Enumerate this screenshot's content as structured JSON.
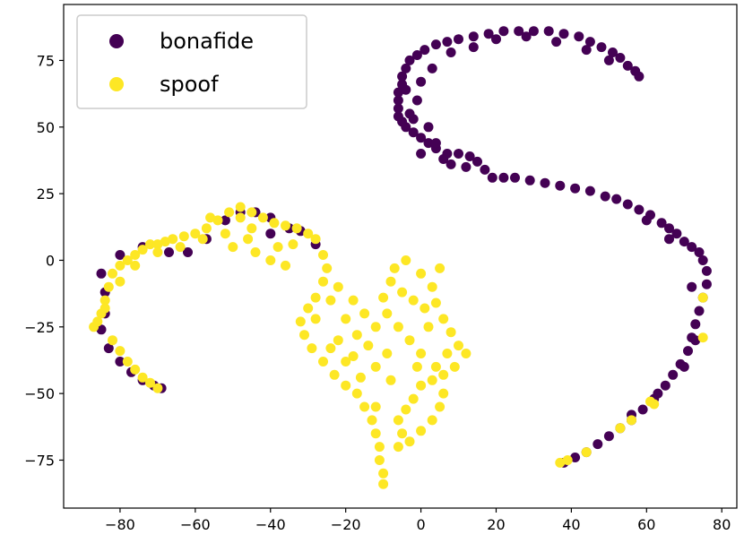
{
  "chart_data": {
    "type": "scatter",
    "title": "",
    "xlabel": "",
    "ylabel": "",
    "xlim": [
      -95,
      84
    ],
    "ylim": [
      -93,
      96
    ],
    "xticks": [
      -80,
      -60,
      -40,
      -20,
      0,
      20,
      40,
      60,
      80
    ],
    "yticks": [
      -75,
      -50,
      -25,
      0,
      25,
      50,
      75
    ],
    "xtick_labels": [
      "−80",
      "−60",
      "−40",
      "−20",
      "0",
      "20",
      "40",
      "60",
      "80"
    ],
    "ytick_labels": [
      "−75",
      "−50",
      "−25",
      "0",
      "25",
      "50",
      "75"
    ],
    "grid": false,
    "legend_position": "top-left",
    "series": [
      {
        "name": "bonafide",
        "color": "#440154",
        "points": [
          [
            -85,
            -5
          ],
          [
            -84,
            -12
          ],
          [
            -84,
            -20
          ],
          [
            -85,
            -26
          ],
          [
            -83,
            -33
          ],
          [
            -80,
            -38
          ],
          [
            -77,
            -42
          ],
          [
            -74,
            -45
          ],
          [
            -71,
            -47
          ],
          [
            -69,
            -48
          ],
          [
            -80,
            2
          ],
          [
            -74,
            5
          ],
          [
            -67,
            3
          ],
          [
            -62,
            3
          ],
          [
            -57,
            8
          ],
          [
            -52,
            15
          ],
          [
            -48,
            18
          ],
          [
            -44,
            18
          ],
          [
            -40,
            16
          ],
          [
            -35,
            12
          ],
          [
            -32,
            11
          ],
          [
            -28,
            6
          ],
          [
            -40,
            10
          ],
          [
            38,
            -76
          ],
          [
            41,
            -74
          ],
          [
            44,
            -72
          ],
          [
            47,
            -69
          ],
          [
            50,
            -66
          ],
          [
            53,
            -63
          ],
          [
            56,
            -60
          ],
          [
            59,
            -56
          ],
          [
            62,
            -52
          ],
          [
            65,
            -47
          ],
          [
            67,
            -43
          ],
          [
            69,
            -39
          ],
          [
            71,
            -34
          ],
          [
            72,
            -29
          ],
          [
            73,
            -24
          ],
          [
            74,
            -19
          ],
          [
            75,
            -14
          ],
          [
            76,
            -9
          ],
          [
            76,
            -4
          ],
          [
            75,
            0
          ],
          [
            74,
            3
          ],
          [
            72,
            5
          ],
          [
            70,
            7
          ],
          [
            68,
            10
          ],
          [
            66,
            12
          ],
          [
            64,
            14
          ],
          [
            61,
            17
          ],
          [
            58,
            19
          ],
          [
            55,
            21
          ],
          [
            52,
            23
          ],
          [
            49,
            24
          ],
          [
            45,
            26
          ],
          [
            41,
            27
          ],
          [
            37,
            28
          ],
          [
            33,
            29
          ],
          [
            29,
            30
          ],
          [
            25,
            31
          ],
          [
            22,
            31
          ],
          [
            19,
            31
          ],
          [
            17,
            34
          ],
          [
            15,
            37
          ],
          [
            13,
            39
          ],
          [
            10,
            40
          ],
          [
            7,
            40
          ],
          [
            4,
            42
          ],
          [
            2,
            44
          ],
          [
            0,
            46
          ],
          [
            -2,
            48
          ],
          [
            -4,
            50
          ],
          [
            -5,
            52
          ],
          [
            -6,
            54
          ],
          [
            -6,
            57
          ],
          [
            -6,
            60
          ],
          [
            -6,
            63
          ],
          [
            -5,
            66
          ],
          [
            -5,
            69
          ],
          [
            -4,
            72
          ],
          [
            -3,
            75
          ],
          [
            -1,
            77
          ],
          [
            1,
            79
          ],
          [
            4,
            81
          ],
          [
            7,
            82
          ],
          [
            10,
            83
          ],
          [
            14,
            84
          ],
          [
            18,
            85
          ],
          [
            22,
            86
          ],
          [
            26,
            86
          ],
          [
            30,
            86
          ],
          [
            34,
            86
          ],
          [
            38,
            85
          ],
          [
            42,
            84
          ],
          [
            45,
            82
          ],
          [
            48,
            80
          ],
          [
            51,
            78
          ],
          [
            53,
            76
          ],
          [
            55,
            73
          ],
          [
            57,
            71
          ],
          [
            58,
            69
          ],
          [
            0,
            40
          ],
          [
            4,
            44
          ],
          [
            2,
            50
          ],
          [
            -2,
            53
          ],
          [
            -1,
            60
          ],
          [
            0,
            67
          ],
          [
            3,
            72
          ],
          [
            8,
            78
          ],
          [
            14,
            80
          ],
          [
            20,
            83
          ],
          [
            28,
            84
          ],
          [
            36,
            82
          ],
          [
            44,
            79
          ],
          [
            50,
            75
          ],
          [
            12,
            35
          ],
          [
            8,
            36
          ],
          [
            6,
            38
          ],
          [
            -3,
            55
          ],
          [
            -4,
            64
          ],
          [
            60,
            15
          ],
          [
            66,
            8
          ],
          [
            72,
            -10
          ],
          [
            73,
            -30
          ],
          [
            70,
            -40
          ],
          [
            63,
            -50
          ],
          [
            56,
            -58
          ]
        ]
      },
      {
        "name": "spoof",
        "color": "#fde725",
        "points": [
          [
            -87,
            -25
          ],
          [
            -85,
            -20
          ],
          [
            -84,
            -15
          ],
          [
            -83,
            -10
          ],
          [
            -82,
            -5
          ],
          [
            -80,
            -2
          ],
          [
            -78,
            0
          ],
          [
            -76,
            2
          ],
          [
            -74,
            4
          ],
          [
            -72,
            6
          ],
          [
            -70,
            6
          ],
          [
            -68,
            7
          ],
          [
            -66,
            8
          ],
          [
            -63,
            9
          ],
          [
            -60,
            10
          ],
          [
            -57,
            12
          ],
          [
            -54,
            15
          ],
          [
            -51,
            18
          ],
          [
            -48,
            20
          ],
          [
            -45,
            18
          ],
          [
            -42,
            16
          ],
          [
            -39,
            14
          ],
          [
            -36,
            13
          ],
          [
            -33,
            12
          ],
          [
            -30,
            10
          ],
          [
            -28,
            8
          ],
          [
            -26,
            2
          ],
          [
            -25,
            -3
          ],
          [
            -26,
            -8
          ],
          [
            -28,
            -14
          ],
          [
            -30,
            -18
          ],
          [
            -32,
            -23
          ],
          [
            -31,
            -28
          ],
          [
            -29,
            -33
          ],
          [
            -26,
            -38
          ],
          [
            -23,
            -43
          ],
          [
            -20,
            -47
          ],
          [
            -17,
            -50
          ],
          [
            -15,
            -55
          ],
          [
            -13,
            -60
          ],
          [
            -12,
            -65
          ],
          [
            -11,
            -70
          ],
          [
            -11,
            -75
          ],
          [
            -10,
            -80
          ],
          [
            -10,
            -84
          ],
          [
            -82,
            -30
          ],
          [
            -80,
            -34
          ],
          [
            -78,
            -38
          ],
          [
            -76,
            -41
          ],
          [
            -74,
            -44
          ],
          [
            -72,
            -46
          ],
          [
            -70,
            -48
          ],
          [
            -50,
            5
          ],
          [
            -46,
            8
          ],
          [
            -44,
            3
          ],
          [
            -40,
            0
          ],
          [
            -36,
            -2
          ],
          [
            -38,
            5
          ],
          [
            -34,
            6
          ],
          [
            -22,
            -10
          ],
          [
            -18,
            -15
          ],
          [
            -15,
            -20
          ],
          [
            -12,
            -25
          ],
          [
            -14,
            -32
          ],
          [
            -18,
            -36
          ],
          [
            -22,
            -30
          ],
          [
            -8,
            -8
          ],
          [
            -5,
            -12
          ],
          [
            -2,
            -15
          ],
          [
            1,
            -18
          ],
          [
            3,
            -10
          ],
          [
            4,
            -16
          ],
          [
            6,
            -22
          ],
          [
            8,
            -27
          ],
          [
            10,
            -32
          ],
          [
            12,
            -35
          ],
          [
            9,
            -40
          ],
          [
            6,
            -43
          ],
          [
            3,
            -45
          ],
          [
            0,
            -47
          ],
          [
            -2,
            -52
          ],
          [
            -4,
            -56
          ],
          [
            -6,
            -60
          ],
          [
            -5,
            -65
          ],
          [
            -3,
            -68
          ],
          [
            0,
            -64
          ],
          [
            3,
            -60
          ],
          [
            5,
            -55
          ],
          [
            6,
            -50
          ],
          [
            4,
            -40
          ],
          [
            0,
            -35
          ],
          [
            -3,
            -30
          ],
          [
            -6,
            -25
          ],
          [
            -9,
            -20
          ],
          [
            -10,
            -14
          ],
          [
            -7,
            -3
          ],
          [
            -4,
            0
          ],
          [
            0,
            -5
          ],
          [
            5,
            -3
          ],
          [
            -12,
            -40
          ],
          [
            -16,
            -44
          ],
          [
            -20,
            -38
          ],
          [
            -24,
            -33
          ],
          [
            -8,
            -45
          ],
          [
            -6,
            -70
          ],
          [
            -12,
            -55
          ],
          [
            -28,
            -22
          ],
          [
            -24,
            -15
          ],
          [
            -20,
            -22
          ],
          [
            -17,
            -28
          ],
          [
            -9,
            -35
          ],
          [
            2,
            -25
          ],
          [
            7,
            -35
          ],
          [
            -1,
            -40
          ],
          [
            -45,
            12
          ],
          [
            -52,
            10
          ],
          [
            -58,
            8
          ],
          [
            -64,
            5
          ],
          [
            -70,
            3
          ],
          [
            -76,
            -2
          ],
          [
            -80,
            -8
          ],
          [
            -84,
            -18
          ],
          [
            -86,
            -23
          ],
          [
            -56,
            16
          ],
          [
            -48,
            16
          ],
          [
            75,
            -14
          ],
          [
            75,
            -29
          ],
          [
            62,
            -54
          ],
          [
            61,
            -53
          ],
          [
            56,
            -60
          ],
          [
            53,
            -63
          ],
          [
            44,
            -72
          ],
          [
            39,
            -75
          ],
          [
            37,
            -76
          ]
        ]
      }
    ]
  }
}
